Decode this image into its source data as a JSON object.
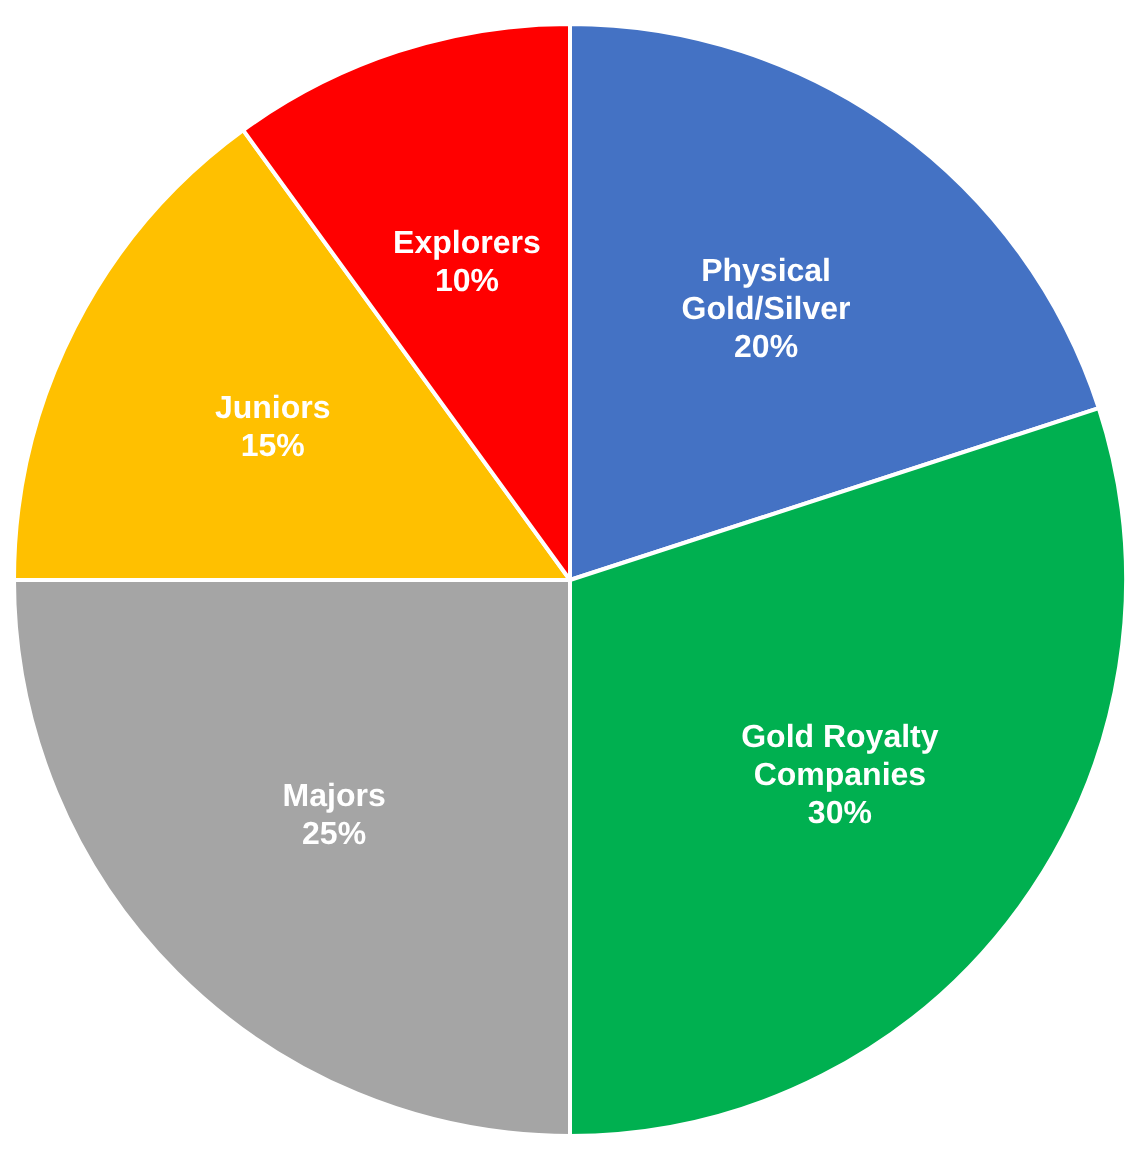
{
  "chart_data": {
    "type": "pie",
    "categories": [
      "Physical\nGold/Silver",
      "Gold Royalty\nCompanies",
      "Majors",
      "Juniors",
      "Explorers"
    ],
    "values": [
      20,
      30,
      25,
      15,
      10
    ],
    "value_labels": [
      "20%",
      "30%",
      "25%",
      "15%",
      "10%"
    ],
    "colors": [
      "#4472c4",
      "#00b050",
      "#a5a5a5",
      "#ffc000",
      "#ff0000"
    ],
    "legend": false
  }
}
